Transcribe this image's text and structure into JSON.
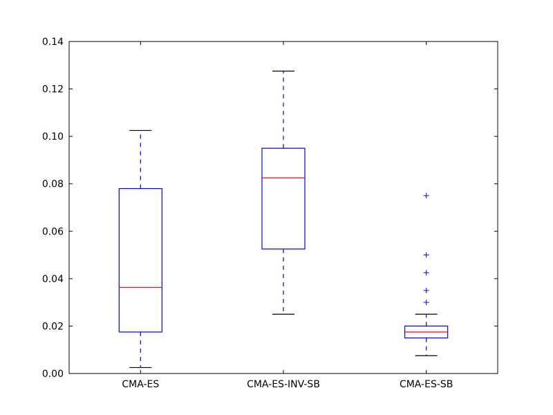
{
  "chart_data": {
    "type": "box",
    "title": "",
    "xlabel": "",
    "ylabel": "",
    "ylim": [
      0,
      0.14
    ],
    "yticks": [
      0.0,
      0.02,
      0.04,
      0.06,
      0.08,
      0.1,
      0.12,
      0.14
    ],
    "ytick_labels": [
      "0.00",
      "0.02",
      "0.04",
      "0.06",
      "0.08",
      "0.10",
      "0.12",
      "0.14"
    ],
    "grid": false,
    "colors": {
      "box": "#0000ff",
      "median": "#ff0000",
      "cap": "#000000",
      "outlier": "#0000ff"
    },
    "categories": [
      "CMA-ES",
      "CMA-ES-INV-SB",
      "CMA-ES-SB"
    ],
    "boxes": [
      {
        "label": "CMA-ES",
        "whisker_low": 0.0025,
        "q1": 0.0175,
        "median": 0.0363,
        "q3": 0.078,
        "whisker_high": 0.1025,
        "outliers": []
      },
      {
        "label": "CMA-ES-INV-SB",
        "whisker_low": 0.025,
        "q1": 0.0525,
        "median": 0.0825,
        "q3": 0.095,
        "whisker_high": 0.1275,
        "outliers": []
      },
      {
        "label": "CMA-ES-SB",
        "whisker_low": 0.0075,
        "q1": 0.015,
        "median": 0.0175,
        "q3": 0.02,
        "whisker_high": 0.025,
        "outliers": [
          0.03,
          0.035,
          0.0425,
          0.05,
          0.075
        ]
      }
    ]
  }
}
